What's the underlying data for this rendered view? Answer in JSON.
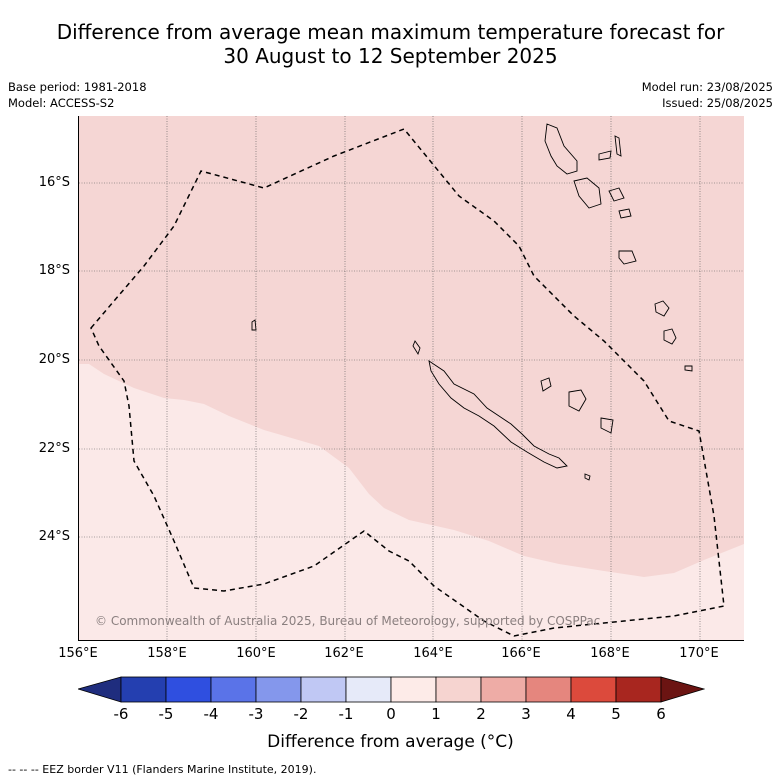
{
  "title_line1": "Difference from average mean maximum temperature forecast for",
  "title_line2": "30 August to 12 September 2025",
  "base_period": "Base period: 1981-2018",
  "model": "Model: ACCESS-S2",
  "model_run": "Model run: 23/08/2025",
  "issued": "Issued: 25/08/2025",
  "copyright": "© Commonwealth of Australia 2025, Bureau of Meteorology, supported by COSPPac",
  "lat_labels": [
    "16°S",
    "18°S",
    "20°S",
    "22°S",
    "24°S"
  ],
  "lon_labels": [
    "156°E",
    "158°E",
    "160°E",
    "162°E",
    "164°E",
    "166°E",
    "168°E",
    "170°E"
  ],
  "colorbar": {
    "ticks": [
      "-6",
      "-5",
      "-4",
      "-3",
      "-2",
      "-1",
      "0",
      "1",
      "2",
      "3",
      "4",
      "5",
      "6"
    ],
    "colors": [
      "#1f2d7e",
      "#243fb0",
      "#2f4fe0",
      "#5a73e8",
      "#8497ec",
      "#c0c8f4",
      "#e6eaf9",
      "#fdebe8",
      "#f6d4d0",
      "#eeaca6",
      "#e5867e",
      "#dc4a3c",
      "#a8261f",
      "#6b1412"
    ],
    "label": "Difference from average (°C)"
  },
  "legend_note": "-- -- -- EEZ border V11 (Flanders Marine Institute, 2019).",
  "map_fill": {
    "warm_1_2": "#f5d6d4",
    "warm_0_1": "#fbe9e8"
  }
}
